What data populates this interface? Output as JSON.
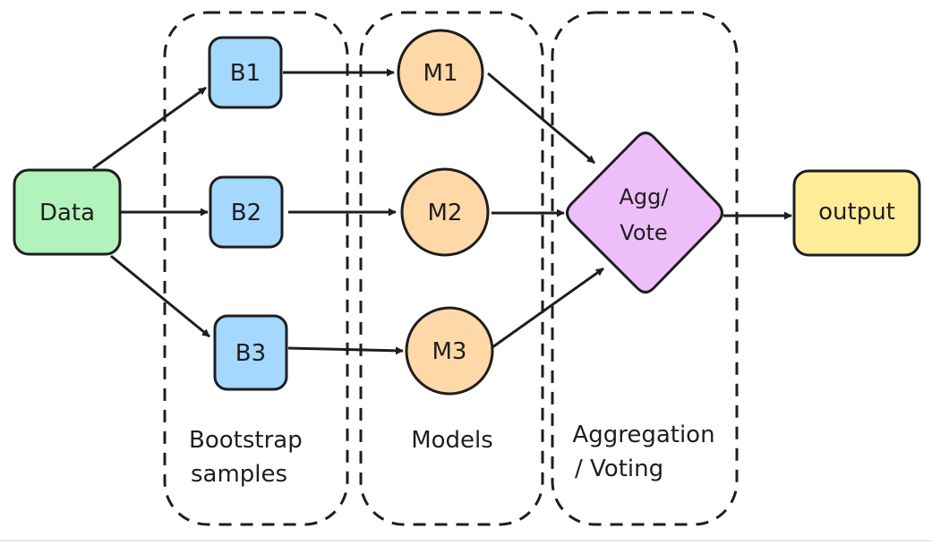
{
  "nodes": {
    "data": {
      "label": "Data",
      "color": "#b2f2bb"
    },
    "b1": {
      "label": "B1",
      "color": "#a5d8ff"
    },
    "b2": {
      "label": "B2",
      "color": "#a5d8ff"
    },
    "b3": {
      "label": "B3",
      "color": "#a5d8ff"
    },
    "m1": {
      "label": "M1",
      "color": "#ffd8a8"
    },
    "m2": {
      "label": "M2",
      "color": "#ffd8a8"
    },
    "m3": {
      "label": "M3",
      "color": "#ffd8a8"
    },
    "agg": {
      "label_line1": "Agg/",
      "label_line2": "Vote",
      "color": "#eebefa"
    },
    "output": {
      "label": "output",
      "color": "#ffec99"
    }
  },
  "groups": {
    "bootstrap": {
      "label_line1": "Bootstrap",
      "label_line2": "samples"
    },
    "models": {
      "label_line1": "Models"
    },
    "aggregation": {
      "label_line1": "Aggregation",
      "label_line2": "/ Voting"
    }
  },
  "colors": {
    "stroke": "#1e1e1e"
  }
}
